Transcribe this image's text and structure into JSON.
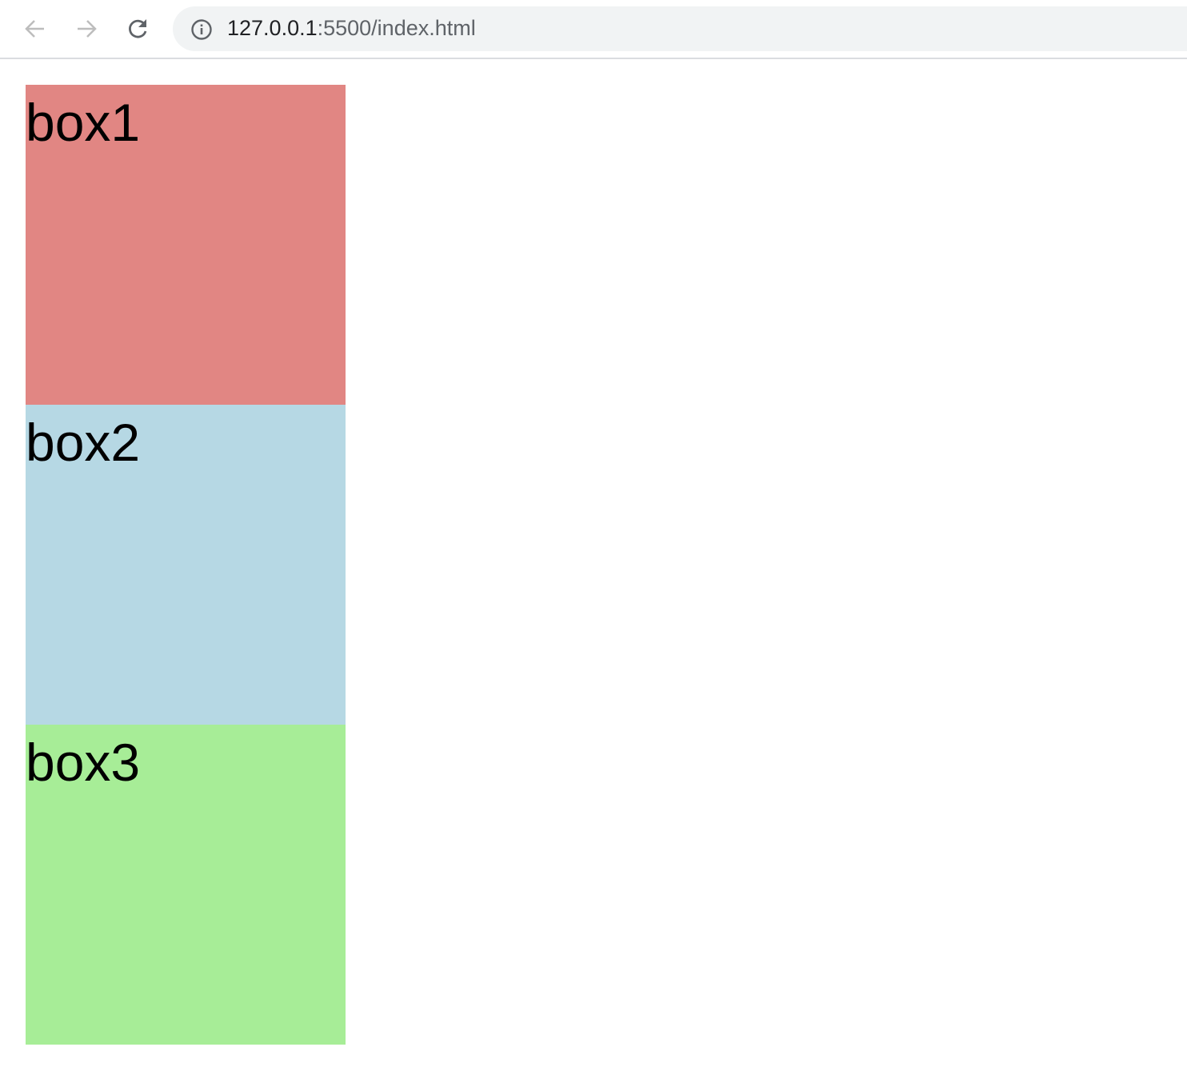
{
  "browser": {
    "url_host": "127.0.0.1",
    "url_rest": ":5500/index.html",
    "icons": [
      "arrow-left-icon",
      "arrow-right-icon",
      "reload-icon",
      "info-icon"
    ]
  },
  "boxes": [
    {
      "label": "box1",
      "color": "#e18683"
    },
    {
      "label": "box2",
      "color": "#b6d8e4"
    },
    {
      "label": "box3",
      "color": "#a7ed97"
    }
  ]
}
